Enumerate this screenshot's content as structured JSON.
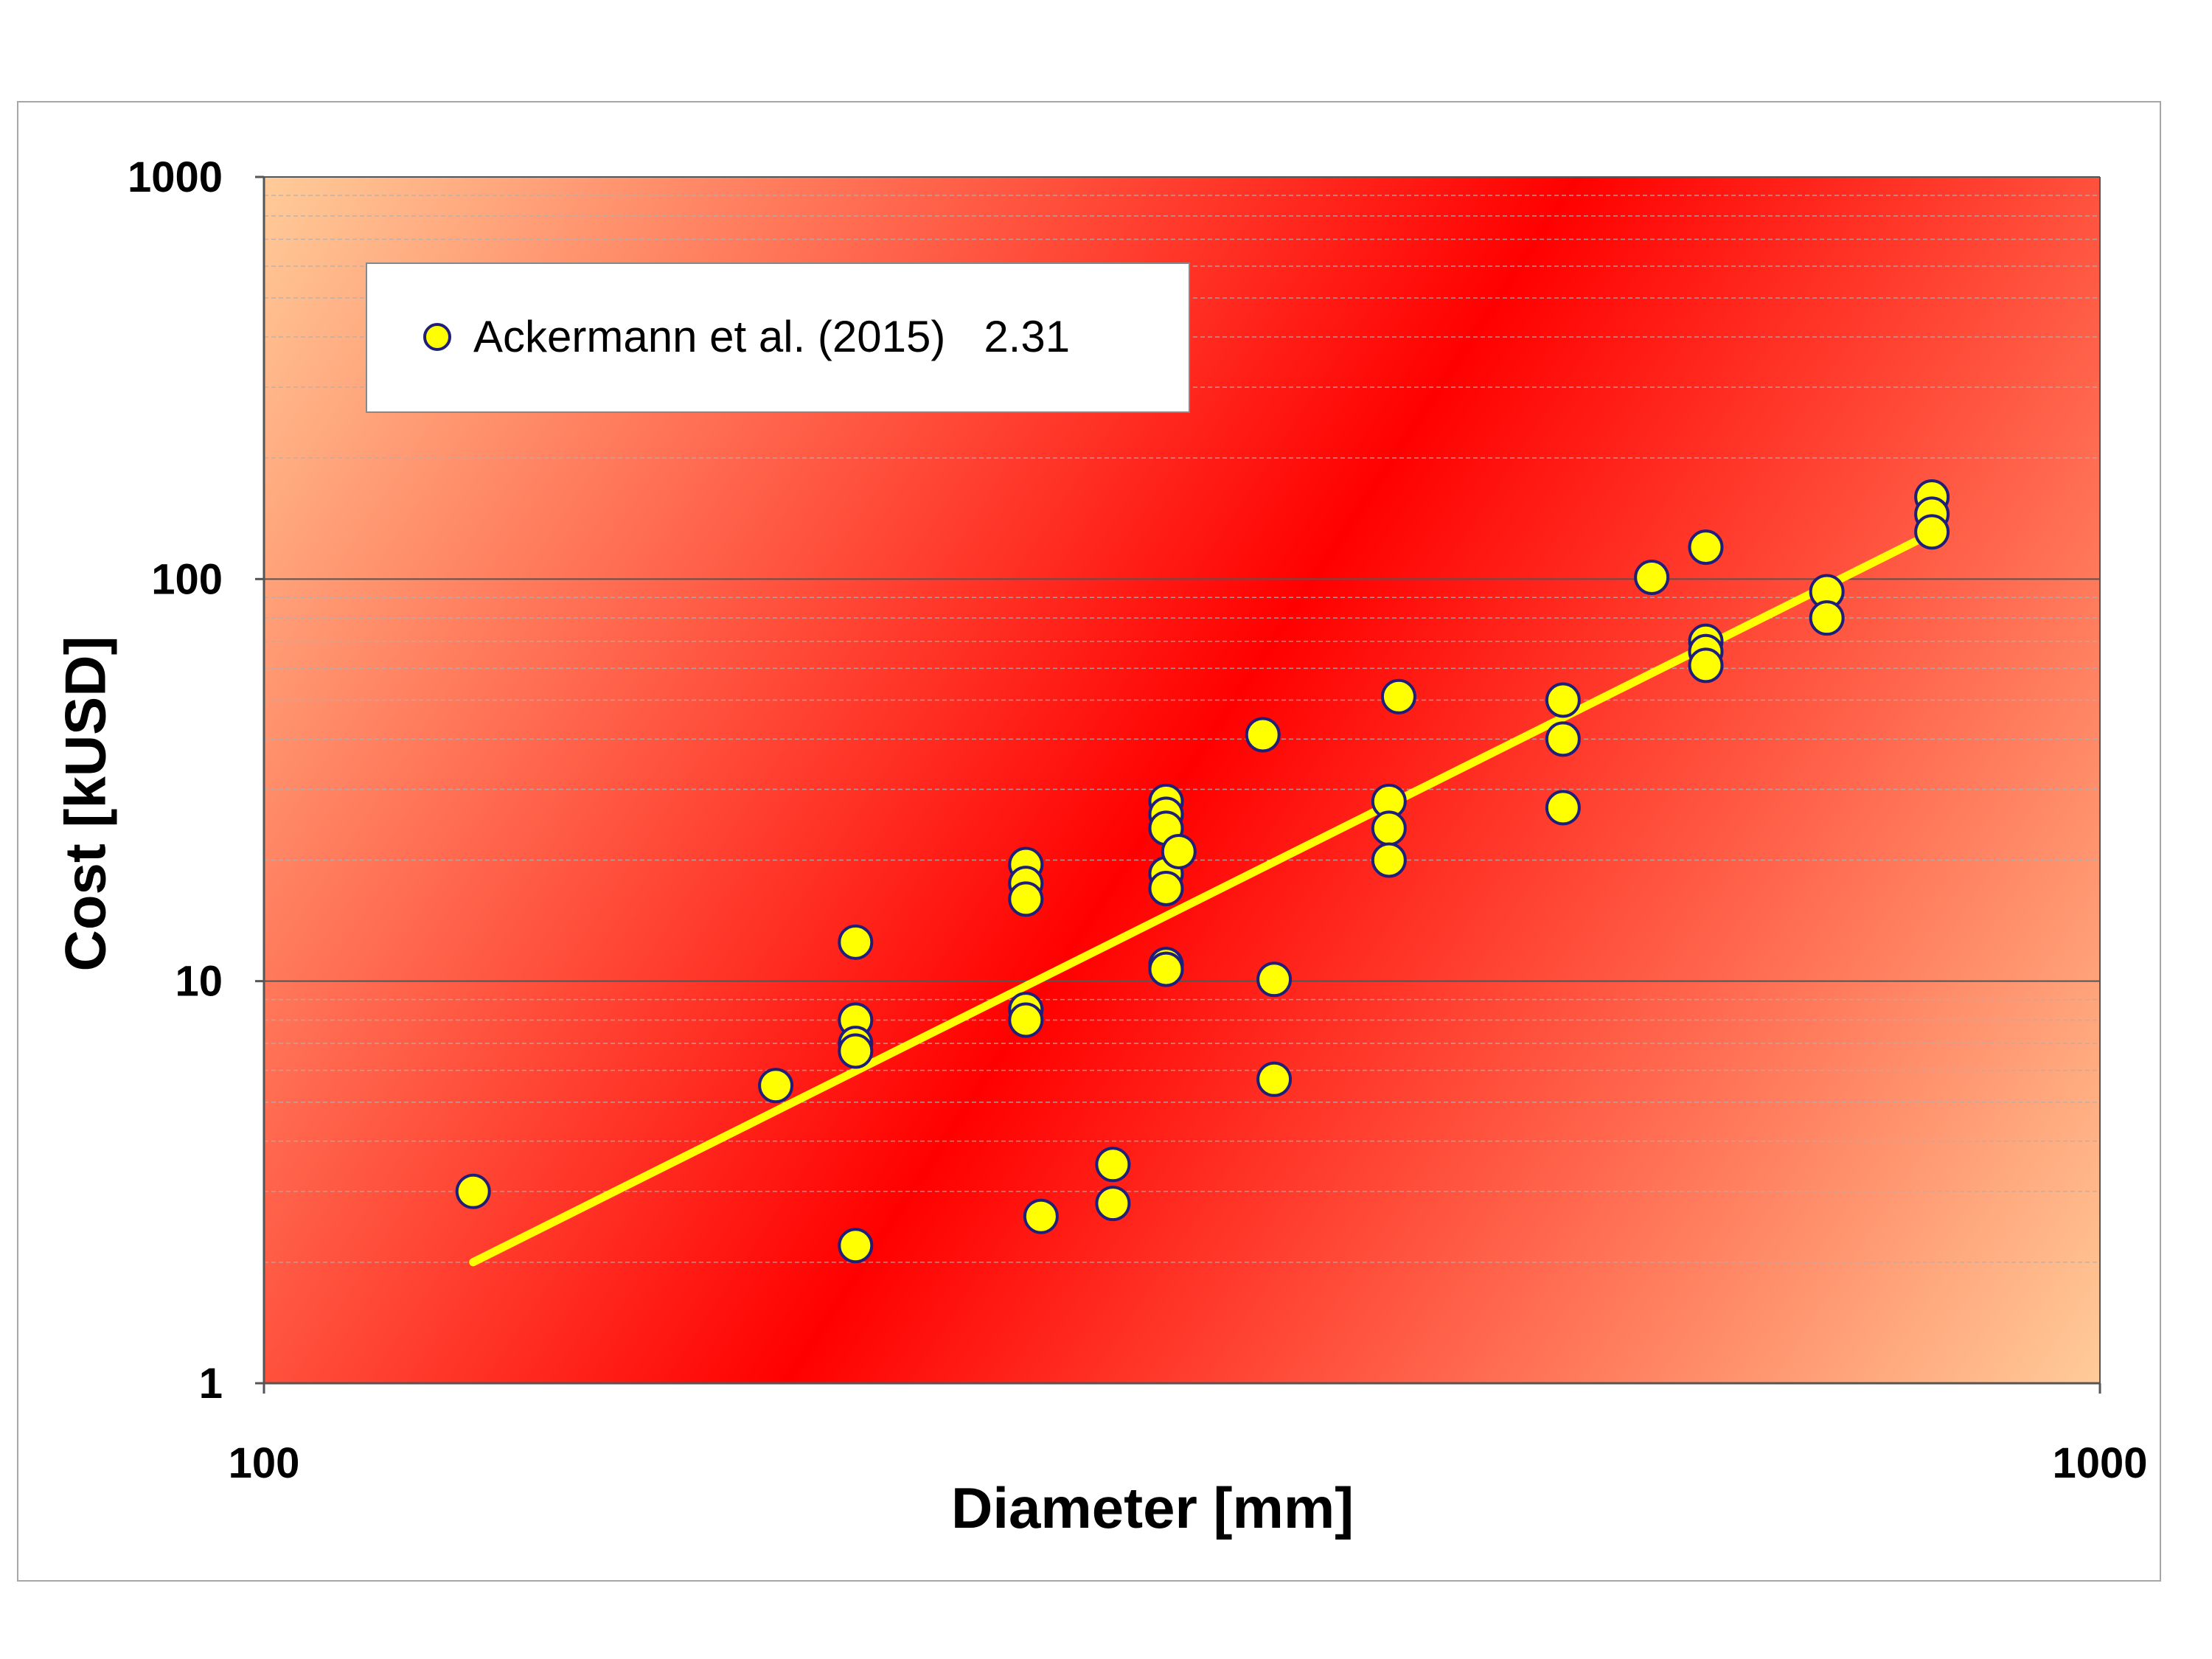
{
  "chart_data": {
    "type": "scatter",
    "xlabel": "Diameter [mm]",
    "ylabel": "Cost [kUSD]",
    "x_scale": "log",
    "y_scale": "log",
    "xlim": [
      100,
      1000
    ],
    "ylim": [
      1,
      1000
    ],
    "x_ticks": [
      "100",
      "1000"
    ],
    "y_ticks": [
      "1",
      "10",
      "100",
      "1000"
    ],
    "grid": "horizontal major and minor",
    "legend": {
      "placement": "top-left",
      "label": "Ackermann et al. (2015)",
      "value": "2.31"
    },
    "colors": {
      "marker_fill": "#ffff00",
      "marker_edge": "#1f1f7a",
      "trend": "#ffff00",
      "background_dark": "#ff0000",
      "background_light": "#ffcc99"
    },
    "series": [
      {
        "name": "Ackermann et al. (2015)",
        "points": [
          [
            130,
            3.0
          ],
          [
            190,
            5.5
          ],
          [
            210,
            12.5
          ],
          [
            210,
            8.0
          ],
          [
            210,
            7.0
          ],
          [
            210,
            6.7
          ],
          [
            210,
            2.2
          ],
          [
            260,
            19.5
          ],
          [
            260,
            17.5
          ],
          [
            260,
            16.0
          ],
          [
            260,
            8.5
          ],
          [
            260,
            8.0
          ],
          [
            265,
            2.6
          ],
          [
            290,
            3.5
          ],
          [
            290,
            2.8
          ],
          [
            310,
            28.0
          ],
          [
            310,
            26.0
          ],
          [
            310,
            24.0
          ],
          [
            310,
            18.5
          ],
          [
            310,
            17.0
          ],
          [
            310,
            11.0
          ],
          [
            310,
            10.7
          ],
          [
            315,
            21.0
          ],
          [
            350,
            41.0
          ],
          [
            355,
            10.1
          ],
          [
            355,
            5.7
          ],
          [
            410,
            28.0
          ],
          [
            410,
            24.0
          ],
          [
            410,
            20.0
          ],
          [
            415,
            51.0
          ],
          [
            510,
            50.0
          ],
          [
            510,
            40.0
          ],
          [
            510,
            27.0
          ],
          [
            570,
            101.0
          ],
          [
            610,
            120.0
          ],
          [
            610,
            70.0
          ],
          [
            610,
            66.0
          ],
          [
            610,
            61.0
          ],
          [
            710,
            93.0
          ],
          [
            710,
            80.0
          ],
          [
            810,
            160.0
          ],
          [
            810,
            145.0
          ],
          [
            810,
            131.0
          ]
        ]
      }
    ],
    "trendline": {
      "x": [
        130,
        810
      ],
      "y": [
        2.0,
        130.0
      ]
    }
  }
}
